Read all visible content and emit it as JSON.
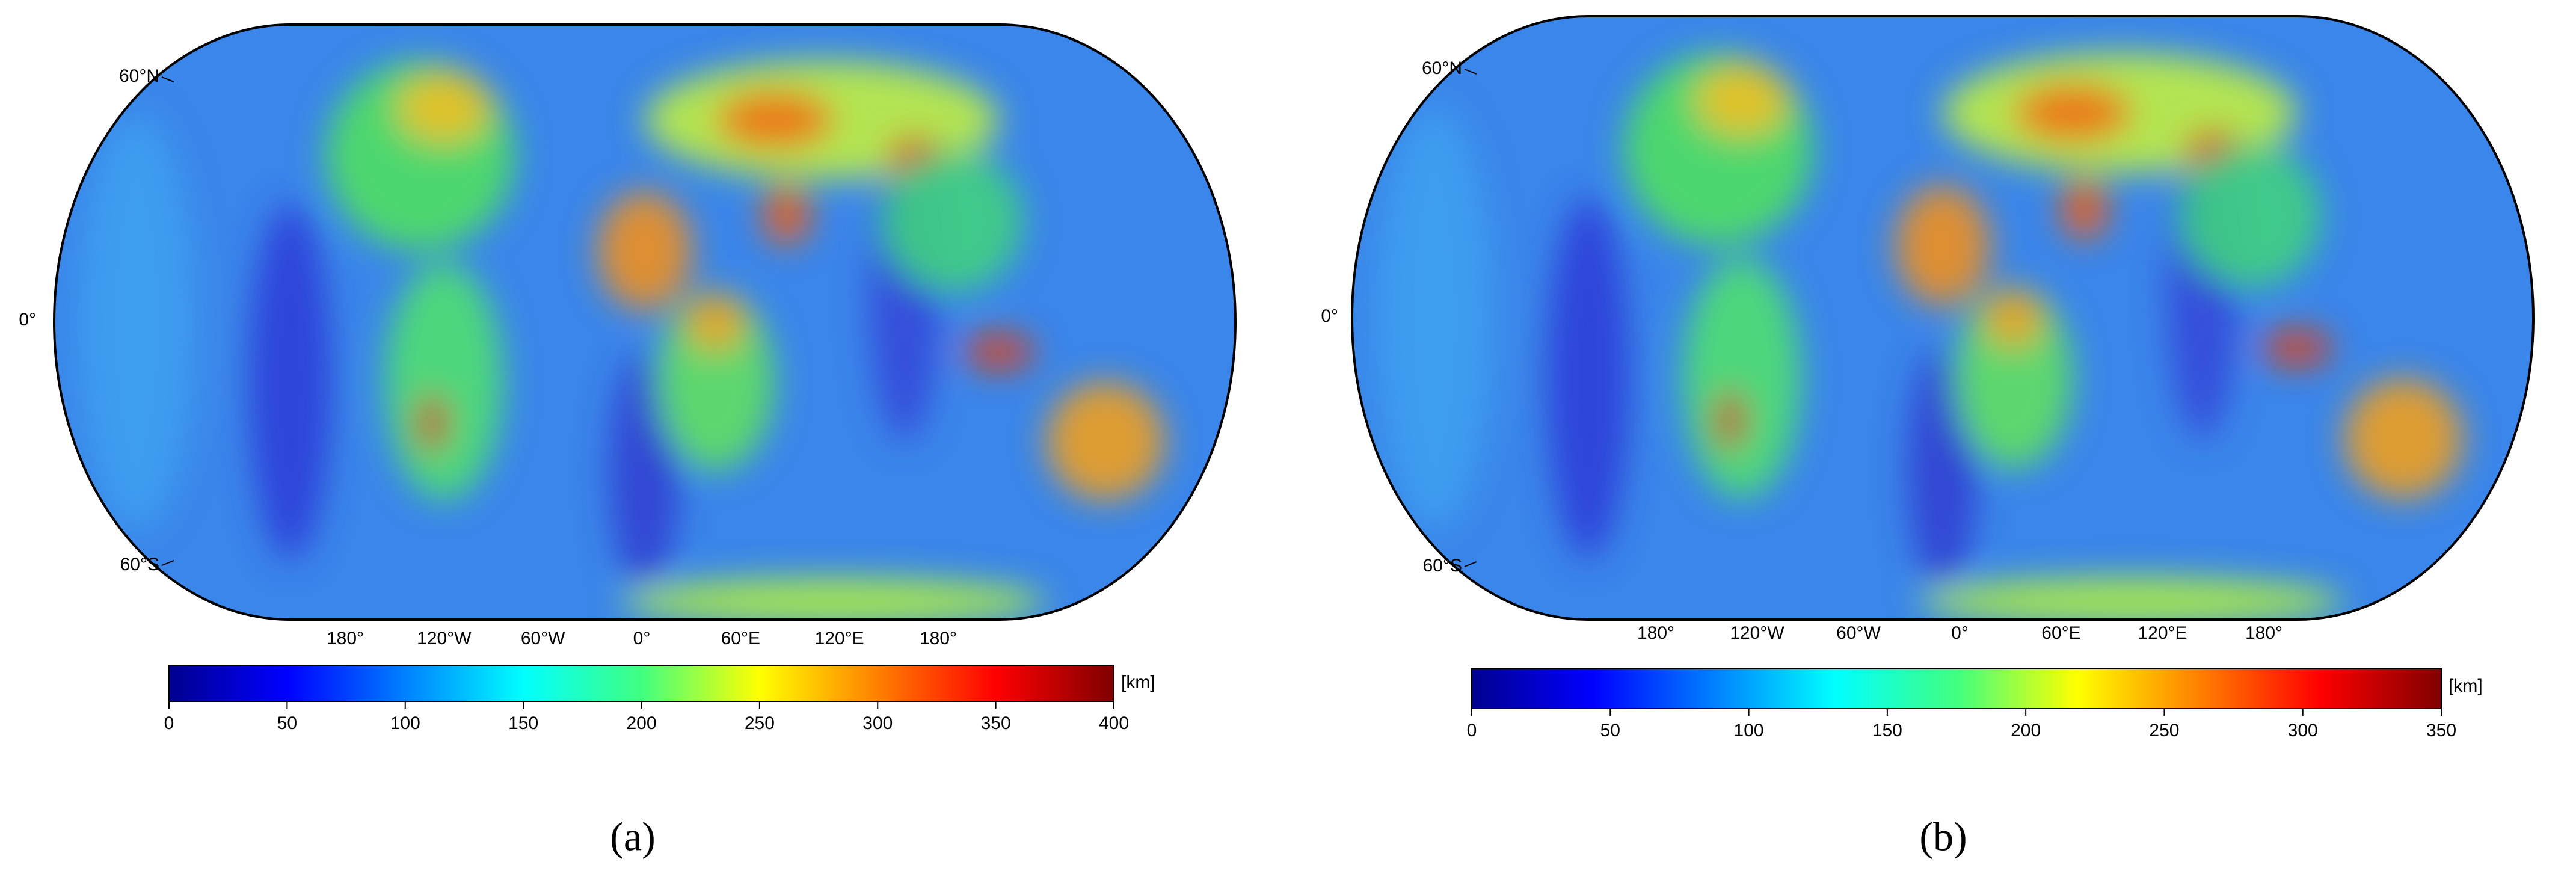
{
  "panels": [
    {
      "label": "(a)",
      "map": {
        "lat_labels": [
          "60°N",
          "0°",
          "60°S"
        ],
        "lon_labels": [
          "180°",
          "120°W",
          "60°W",
          "0°",
          "60°E",
          "120°E",
          "180°"
        ]
      },
      "colorbar": {
        "unit": "[km]",
        "lim": [
          0,
          400
        ],
        "ticks": [
          0,
          50,
          100,
          150,
          200,
          250,
          300,
          350,
          400
        ],
        "colormap": [
          "#00008f",
          "#0000ff",
          "#0080ff",
          "#00ffff",
          "#40ff80",
          "#ffff00",
          "#ff8000",
          "#ff0000",
          "#800000"
        ]
      }
    },
    {
      "label": "(b)",
      "map": {
        "lat_labels": [
          "60°N",
          "0°",
          "60°S"
        ],
        "lon_labels": [
          "180°",
          "120°W",
          "60°W",
          "0°",
          "60°E",
          "120°E",
          "180°"
        ]
      },
      "colorbar": {
        "unit": "[km]",
        "lim": [
          0,
          350
        ],
        "ticks": [
          0,
          50,
          100,
          150,
          200,
          250,
          300,
          350
        ],
        "colormap": [
          "#00008f",
          "#0000ff",
          "#0080ff",
          "#00ffff",
          "#40ff80",
          "#ffff00",
          "#ff8000",
          "#ff0000",
          "#800000"
        ]
      }
    }
  ]
}
